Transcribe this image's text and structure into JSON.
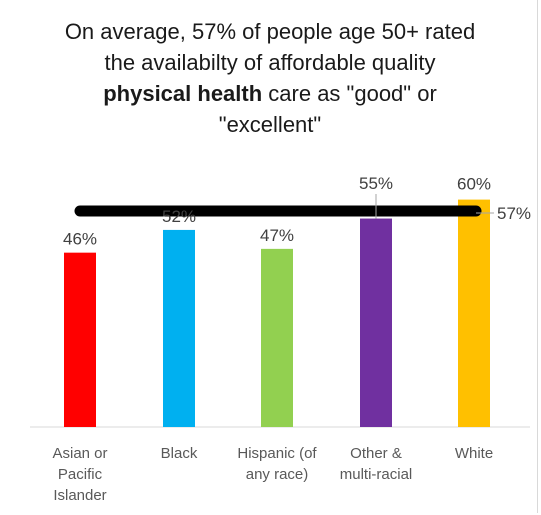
{
  "title": {
    "line1": "On average, 57% of people age 50+ rated",
    "line2": "the availabilty of affordable quality",
    "line3_bold": "physical health",
    "line3_rest": " care as \"good\" or",
    "line4": "\"excellent\""
  },
  "chart_data": {
    "type": "bar",
    "title": "On average, 57% of people age 50+ rated the availabilty of affordable quality physical health care as \"good\" or \"excellent\"",
    "categories": [
      "Asian or Pacific Islander",
      "Black",
      "Hispanic (of any race)",
      "Other & multi-racial",
      "White"
    ],
    "category_lines": [
      [
        "Asian or",
        "Pacific",
        "Islander"
      ],
      [
        "Black"
      ],
      [
        "Hispanic (of",
        "any race)"
      ],
      [
        "Other &",
        "multi-racial"
      ],
      [
        "White"
      ]
    ],
    "values": [
      46,
      52,
      47,
      55,
      60
    ],
    "value_labels": [
      "46%",
      "52%",
      "47%",
      "55%",
      "60%"
    ],
    "colors": [
      "#ff0000",
      "#00b0f0",
      "#92d050",
      "#7030a0",
      "#ffc000"
    ],
    "average": {
      "value": 57,
      "label": "57%",
      "color": "#000000"
    },
    "ylim": [
      0,
      70
    ],
    "xlabel": "",
    "ylabel": "",
    "grid": false
  }
}
